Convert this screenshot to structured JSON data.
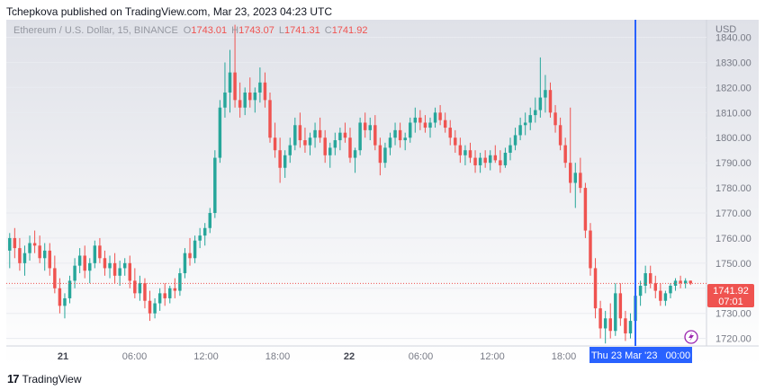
{
  "publisher_line": "Tchepkova published on TradingView.com, Mar 23, 2023 04:23 UTC",
  "brand": "TradingView",
  "brand_icon": "tradingview-logo-icon",
  "colors": {
    "up": "#26a69a",
    "down": "#ef5350",
    "crosshair": "#2962ff",
    "price_line": "#ef5350",
    "bg_top": "#dfe1e8",
    "bg_bottom": "#ffffff"
  },
  "chart_data": {
    "type": "candlestick",
    "symbol_label": "Ethereum / U.S. Dollar, 15, BINANCE",
    "ohlc_labels": {
      "o_key": "O",
      "o": "1743.01",
      "h_key": "H",
      "h": "1743.07",
      "l_key": "L",
      "l": "1741.31",
      "c_key": "C",
      "c": "1741.92"
    },
    "currency": "USD",
    "y_ticks": [
      1840,
      1830,
      1820,
      1810,
      1800,
      1790,
      1780,
      1770,
      1760,
      1750,
      1740,
      1730,
      1720
    ],
    "y_tick_labels": [
      "1840.00",
      "1830.00",
      "1820.00",
      "1810.00",
      "1800.00",
      "1790.00",
      "1780.00",
      "1770.00",
      "1760.00",
      "1750.00",
      "1740.00",
      "1730.00",
      "1720.00"
    ],
    "ylim": [
      1717,
      1847
    ],
    "x_tick_labels": [
      "21",
      "06:00",
      "12:00",
      "18:00",
      "22",
      "06:00",
      "12:00",
      "18:00"
    ],
    "x_tick_bold": [
      true,
      false,
      false,
      false,
      true,
      false,
      false,
      false
    ],
    "x_tick_hours": [
      0,
      6,
      12,
      18,
      24,
      30,
      36,
      42
    ],
    "last_price_label": "1741.92",
    "countdown_label": "07:01",
    "crosshair_time_label": "Thu 23 Mar '23   00:00",
    "crosshair_hour": 48,
    "candles": [
      [
        1755.0,
        1762.0,
        1748.0,
        1760.0
      ],
      [
        1760.0,
        1764.0,
        1752.0,
        1756.0
      ],
      [
        1756.0,
        1760.0,
        1747.0,
        1750.0
      ],
      [
        1750.0,
        1757.0,
        1745.0,
        1754.0
      ],
      [
        1754.0,
        1761.0,
        1751.0,
        1758.0
      ],
      [
        1758.0,
        1763.0,
        1754.0,
        1757.0
      ],
      [
        1757.0,
        1761.0,
        1750.0,
        1752.0
      ],
      [
        1752.0,
        1758.0,
        1747.0,
        1755.0
      ],
      [
        1755.0,
        1758.0,
        1745.0,
        1748.0
      ],
      [
        1748.0,
        1753.0,
        1738.0,
        1740.0
      ],
      [
        1740.0,
        1744.0,
        1730.0,
        1733.0
      ],
      [
        1733.0,
        1738.0,
        1728.0,
        1736.0
      ],
      [
        1736.0,
        1745.0,
        1734.0,
        1743.0
      ],
      [
        1743.0,
        1752.0,
        1740.0,
        1749.0
      ],
      [
        1749.0,
        1756.0,
        1746.0,
        1753.0
      ],
      [
        1753.0,
        1757.0,
        1744.0,
        1747.0
      ],
      [
        1747.0,
        1752.0,
        1742.0,
        1750.0
      ],
      [
        1750.0,
        1759.0,
        1748.0,
        1757.0
      ],
      [
        1757.0,
        1760.0,
        1750.0,
        1752.0
      ],
      [
        1752.0,
        1755.0,
        1745.0,
        1748.0
      ],
      [
        1748.0,
        1753.0,
        1744.0,
        1750.0
      ],
      [
        1750.0,
        1754.0,
        1742.0,
        1745.0
      ],
      [
        1745.0,
        1751.0,
        1741.0,
        1748.0
      ],
      [
        1748.0,
        1752.0,
        1745.0,
        1750.0
      ],
      [
        1750.0,
        1753.0,
        1740.0,
        1743.0
      ],
      [
        1743.0,
        1748.0,
        1736.0,
        1738.0
      ],
      [
        1738.0,
        1745.0,
        1735.0,
        1742.0
      ],
      [
        1742.0,
        1744.0,
        1732.0,
        1735.0
      ],
      [
        1735.0,
        1739.0,
        1727.0,
        1730.0
      ],
      [
        1730.0,
        1736.0,
        1728.0,
        1734.0
      ],
      [
        1734.0,
        1740.0,
        1731.0,
        1738.0
      ],
      [
        1738.0,
        1742.0,
        1733.0,
        1736.0
      ],
      [
        1736.0,
        1741.0,
        1734.0,
        1740.0
      ],
      [
        1740.0,
        1744.0,
        1736.0,
        1739.0
      ],
      [
        1739.0,
        1748.0,
        1737.0,
        1746.0
      ],
      [
        1746.0,
        1756.0,
        1744.0,
        1754.0
      ],
      [
        1754.0,
        1760.0,
        1749.0,
        1752.0
      ],
      [
        1752.0,
        1761.0,
        1750.0,
        1759.0
      ],
      [
        1759.0,
        1764.0,
        1756.0,
        1761.0
      ],
      [
        1761.0,
        1766.0,
        1757.0,
        1764.0
      ],
      [
        1764.0,
        1772.0,
        1762.0,
        1770.0
      ],
      [
        1770.0,
        1795.0,
        1768.0,
        1792.0
      ],
      [
        1792.0,
        1815.0,
        1790.0,
        1812.0
      ],
      [
        1812.0,
        1830.0,
        1808.0,
        1818.0
      ],
      [
        1818.0,
        1835.0,
        1810.0,
        1826.0
      ],
      [
        1826.0,
        1845.0,
        1812.0,
        1815.0
      ],
      [
        1815.0,
        1822.0,
        1808.0,
        1812.0
      ],
      [
        1812.0,
        1820.0,
        1809.0,
        1818.0
      ],
      [
        1818.0,
        1824.0,
        1812.0,
        1815.0
      ],
      [
        1815.0,
        1820.0,
        1810.0,
        1818.0
      ],
      [
        1818.0,
        1828.0,
        1814.0,
        1822.0
      ],
      [
        1822.0,
        1826.0,
        1812.0,
        1815.0
      ],
      [
        1815.0,
        1818.0,
        1798.0,
        1800.0
      ],
      [
        1800.0,
        1806.0,
        1792.0,
        1795.0
      ],
      [
        1795.0,
        1800.0,
        1782.0,
        1788.0
      ],
      [
        1788.0,
        1795.0,
        1784.0,
        1793.0
      ],
      [
        1793.0,
        1800.0,
        1790.0,
        1797.0
      ],
      [
        1797.0,
        1808.0,
        1795.0,
        1805.0
      ],
      [
        1805.0,
        1810.0,
        1796.0,
        1799.0
      ],
      [
        1799.0,
        1804.0,
        1794.0,
        1797.0
      ],
      [
        1797.0,
        1802.0,
        1793.0,
        1800.0
      ],
      [
        1800.0,
        1806.0,
        1796.0,
        1803.0
      ],
      [
        1803.0,
        1808.0,
        1798.0,
        1800.0
      ],
      [
        1800.0,
        1803.0,
        1790.0,
        1793.0
      ],
      [
        1793.0,
        1798.0,
        1788.0,
        1796.0
      ],
      [
        1796.0,
        1802.0,
        1793.0,
        1799.0
      ],
      [
        1799.0,
        1804.0,
        1795.0,
        1802.0
      ],
      [
        1802.0,
        1806.0,
        1798.0,
        1800.0
      ],
      [
        1800.0,
        1804.0,
        1790.0,
        1792.0
      ],
      [
        1792.0,
        1796.0,
        1786.0,
        1795.0
      ],
      [
        1795.0,
        1808.0,
        1793.0,
        1806.0
      ],
      [
        1806.0,
        1810.0,
        1800.0,
        1803.0
      ],
      [
        1803.0,
        1808.0,
        1799.0,
        1805.0
      ],
      [
        1805.0,
        1809.0,
        1795.0,
        1797.0
      ],
      [
        1797.0,
        1800.0,
        1785.0,
        1790.0
      ],
      [
        1790.0,
        1798.0,
        1788.0,
        1796.0
      ],
      [
        1796.0,
        1802.0,
        1793.0,
        1800.0
      ],
      [
        1800.0,
        1806.0,
        1797.0,
        1803.0
      ],
      [
        1803.0,
        1806.0,
        1796.0,
        1799.0
      ],
      [
        1799.0,
        1802.0,
        1795.0,
        1800.0
      ],
      [
        1800.0,
        1808.0,
        1798.0,
        1806.0
      ],
      [
        1806.0,
        1812.0,
        1802.0,
        1808.0
      ],
      [
        1808.0,
        1811.0,
        1803.0,
        1806.0
      ],
      [
        1806.0,
        1809.0,
        1802.0,
        1804.0
      ],
      [
        1804.0,
        1808.0,
        1800.0,
        1806.0
      ],
      [
        1806.0,
        1812.0,
        1804.0,
        1810.0
      ],
      [
        1810.0,
        1813.0,
        1805.0,
        1807.0
      ],
      [
        1807.0,
        1810.0,
        1802.0,
        1804.0
      ],
      [
        1804.0,
        1807.0,
        1797.0,
        1800.0
      ],
      [
        1800.0,
        1803.0,
        1794.0,
        1797.0
      ],
      [
        1797.0,
        1800.0,
        1790.0,
        1793.0
      ],
      [
        1793.0,
        1797.0,
        1789.0,
        1795.0
      ],
      [
        1795.0,
        1798.0,
        1790.0,
        1792.0
      ],
      [
        1792.0,
        1795.0,
        1786.0,
        1789.0
      ],
      [
        1789.0,
        1794.0,
        1786.0,
        1792.0
      ],
      [
        1792.0,
        1795.0,
        1788.0,
        1790.0
      ],
      [
        1790.0,
        1795.0,
        1787.0,
        1793.0
      ],
      [
        1793.0,
        1797.0,
        1790.0,
        1791.0
      ],
      [
        1791.0,
        1795.0,
        1786.0,
        1789.0
      ],
      [
        1789.0,
        1796.0,
        1788.0,
        1794.0
      ],
      [
        1794.0,
        1800.0,
        1791.0,
        1797.0
      ],
      [
        1797.0,
        1804.0,
        1795.0,
        1801.0
      ],
      [
        1801.0,
        1808.0,
        1799.0,
        1805.0
      ],
      [
        1805.0,
        1810.0,
        1801.0,
        1806.0
      ],
      [
        1806.0,
        1812.0,
        1803.0,
        1809.0
      ],
      [
        1809.0,
        1816.0,
        1806.0,
        1811.0
      ],
      [
        1811.0,
        1832.0,
        1808.0,
        1816.0
      ],
      [
        1816.0,
        1825.0,
        1810.0,
        1819.0
      ],
      [
        1819.0,
        1822.0,
        1808.0,
        1810.0
      ],
      [
        1810.0,
        1813.0,
        1802.0,
        1805.0
      ],
      [
        1805.0,
        1808.0,
        1795.0,
        1797.0
      ],
      [
        1797.0,
        1800.0,
        1788.0,
        1790.0
      ],
      [
        1790.0,
        1812.0,
        1778.0,
        1782.0
      ],
      [
        1782.0,
        1790.0,
        1772.0,
        1786.0
      ],
      [
        1786.0,
        1792.0,
        1778.0,
        1780.0
      ],
      [
        1780.0,
        1782.0,
        1760.0,
        1763.0
      ],
      [
        1763.0,
        1766.0,
        1745.0,
        1748.0
      ],
      [
        1748.0,
        1752.0,
        1728.0,
        1732.0
      ],
      [
        1732.0,
        1735.0,
        1720.0,
        1724.0
      ],
      [
        1724.0,
        1731.0,
        1718.0,
        1728.0
      ],
      [
        1728.0,
        1734.0,
        1720.0,
        1723.0
      ],
      [
        1723.0,
        1742.0,
        1721.0,
        1738.0
      ],
      [
        1738.0,
        1742.0,
        1725.0,
        1728.0
      ],
      [
        1728.0,
        1731.0,
        1719.0,
        1722.0
      ],
      [
        1722.0,
        1730.0,
        1720.0,
        1727.0
      ],
      [
        1727.0,
        1740.0,
        1725.0,
        1737.0
      ],
      [
        1737.0,
        1743.0,
        1733.0,
        1741.0
      ],
      [
        1741.0,
        1749.0,
        1738.0,
        1746.0
      ],
      [
        1746.0,
        1749.0,
        1740.0,
        1742.0
      ],
      [
        1742.0,
        1745.0,
        1736.0,
        1739.0
      ],
      [
        1739.0,
        1742.0,
        1733.0,
        1735.0
      ],
      [
        1735.0,
        1739.0,
        1733.0,
        1738.0
      ],
      [
        1738.0,
        1742.0,
        1736.0,
        1741.0
      ],
      [
        1741.0,
        1744.0,
        1739.0,
        1743.0
      ],
      [
        1743.0,
        1745.0,
        1740.0,
        1742.0
      ],
      [
        1742.0,
        1744.0,
        1740.0,
        1743.0
      ],
      [
        1743.01,
        1743.07,
        1741.31,
        1741.92
      ]
    ]
  }
}
